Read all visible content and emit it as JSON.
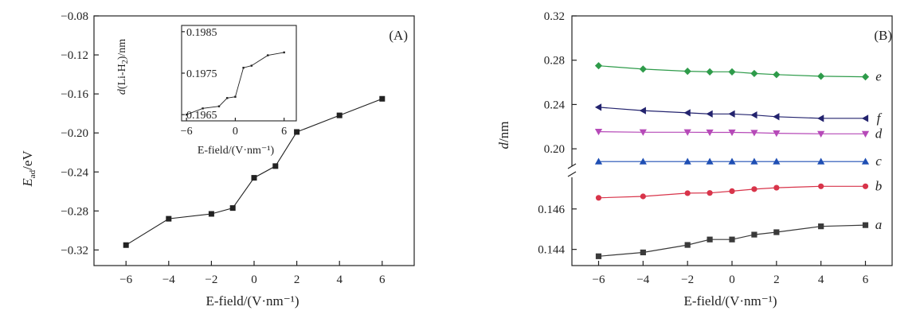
{
  "chart_data": [
    {
      "panel": "A",
      "type": "line",
      "panel_label": "(A)",
      "xlabel": "E-field/(V·nm⁻¹)",
      "ylabel": "E_ad/eV",
      "ylabel_main": "E",
      "ylabel_sub": "ad",
      "ylabel_unit": "/eV",
      "xlim": [
        -7.5,
        7.5
      ],
      "ylim": [
        -0.336,
        -0.08
      ],
      "xticks": [
        -6,
        -4,
        -2,
        0,
        2,
        4,
        6
      ],
      "xtick_labels": [
        "−6",
        "−4",
        "−2",
        "0",
        "2",
        "4",
        "6"
      ],
      "yticks": [
        -0.08,
        -0.12,
        -0.16,
        -0.2,
        -0.24,
        -0.28,
        -0.32
      ],
      "ytick_labels": [
        "−0.08",
        "−0.12",
        "−0.16",
        "−0.20",
        "−0.24",
        "−0.28",
        "−0.32"
      ],
      "series": [
        {
          "name": "E_ad",
          "color": "#222222",
          "marker": "square",
          "x": [
            -6,
            -4,
            -2,
            -1,
            0,
            1,
            2,
            4,
            6
          ],
          "y": [
            -0.315,
            -0.288,
            -0.283,
            -0.277,
            -0.246,
            -0.234,
            -0.199,
            -0.182,
            -0.165
          ]
        }
      ],
      "inset": {
        "xlabel": "E-field/(V·nm⁻¹)",
        "ylabel": "d(Li-H₂)/nm",
        "ylabel_main": "d",
        "ylabel_rest": "(Li-H",
        "ylabel_sub": "2",
        "ylabel_unit": ")/nm",
        "xlim": [
          -6.6,
          7.5
        ],
        "ylim": [
          0.19635,
          0.19865
        ],
        "xticks": [
          -6,
          0,
          6
        ],
        "xtick_labels": [
          "−6",
          "0",
          "6"
        ],
        "yticks": [
          0.1965,
          0.1975,
          0.1985
        ],
        "ytick_labels": [
          "0.1965",
          "0.1975",
          "0.1985"
        ],
        "series": [
          {
            "name": "d(Li-H2)",
            "color": "#222222",
            "x": [
              -6,
              -4,
              -2,
              -1,
              0,
              1,
              2,
              4,
              6
            ],
            "y": [
              0.1965,
              0.19665,
              0.1967,
              0.1969,
              0.19693,
              0.19763,
              0.19768,
              0.19793,
              0.198
            ]
          }
        ]
      }
    },
    {
      "panel": "B",
      "type": "line",
      "panel_label": "(B)",
      "xlabel": "E-field/(V·nm⁻¹)",
      "ylabel": "d/nm",
      "ylabel_main": "d",
      "ylabel_unit": "/nm",
      "xlim": [
        -7.2,
        7.2
      ],
      "broken_axis": true,
      "upper_ylim": [
        0.18,
        0.32
      ],
      "upper_yticks": [
        0.2,
        0.24,
        0.28,
        0.32
      ],
      "upper_ytick_labels": [
        "0.20",
        "0.24",
        "0.28",
        "0.32"
      ],
      "lower_ylim": [
        0.1432,
        0.1478
      ],
      "lower_yticks": [
        0.144,
        0.146
      ],
      "lower_ytick_labels": [
        "0.144",
        "0.146"
      ],
      "xticks": [
        -6,
        -4,
        -2,
        0,
        2,
        4,
        6
      ],
      "xtick_labels": [
        "−6",
        "−4",
        "−2",
        "0",
        "2",
        "4",
        "6"
      ],
      "series": [
        {
          "name": "e",
          "segment": "upper",
          "color": "#2e9b4a",
          "marker": "diamond",
          "x": [
            -6,
            -4,
            -2,
            -1,
            0,
            1,
            2,
            4,
            6
          ],
          "y": [
            0.275,
            0.272,
            0.27,
            0.2695,
            0.2695,
            0.268,
            0.267,
            0.2655,
            0.265
          ]
        },
        {
          "name": "f",
          "segment": "upper",
          "color": "#23236e",
          "marker": "triangle-left",
          "x": [
            -6,
            -4,
            -2,
            -1,
            0,
            1,
            2,
            4,
            6
          ],
          "y": [
            0.2375,
            0.2345,
            0.2325,
            0.2315,
            0.2315,
            0.2305,
            0.229,
            0.2275,
            0.2275
          ]
        },
        {
          "name": "d",
          "segment": "upper",
          "color": "#b64ab8",
          "marker": "triangle-down",
          "x": [
            -6,
            -4,
            -2,
            -1,
            0,
            1,
            2,
            4,
            6
          ],
          "y": [
            0.2155,
            0.215,
            0.215,
            0.2148,
            0.2148,
            0.2145,
            0.214,
            0.2135,
            0.2135
          ]
        },
        {
          "name": "c",
          "segment": "upper",
          "color": "#1f4fb4",
          "marker": "triangle-up",
          "x": [
            -6,
            -4,
            -2,
            -1,
            0,
            1,
            2,
            4,
            6
          ],
          "y": [
            0.1885,
            0.1885,
            0.1885,
            0.1885,
            0.1885,
            0.1885,
            0.1885,
            0.1885,
            0.1885
          ]
        },
        {
          "name": "b",
          "segment": "lower",
          "color": "#d8344a",
          "marker": "circle",
          "x": [
            -6,
            -4,
            -2,
            -1,
            0,
            1,
            2,
            4,
            6
          ],
          "y": [
            0.14655,
            0.14662,
            0.14678,
            0.14679,
            0.14688,
            0.14698,
            0.14705,
            0.14712,
            0.14712
          ]
        },
        {
          "name": "a",
          "segment": "lower",
          "color": "#3a3a3a",
          "marker": "square",
          "x": [
            -6,
            -4,
            -2,
            -1,
            0,
            1,
            2,
            4,
            6
          ],
          "y": [
            0.14366,
            0.14385,
            0.14422,
            0.14449,
            0.14449,
            0.14473,
            0.14485,
            0.14514,
            0.1452
          ]
        }
      ]
    }
  ]
}
